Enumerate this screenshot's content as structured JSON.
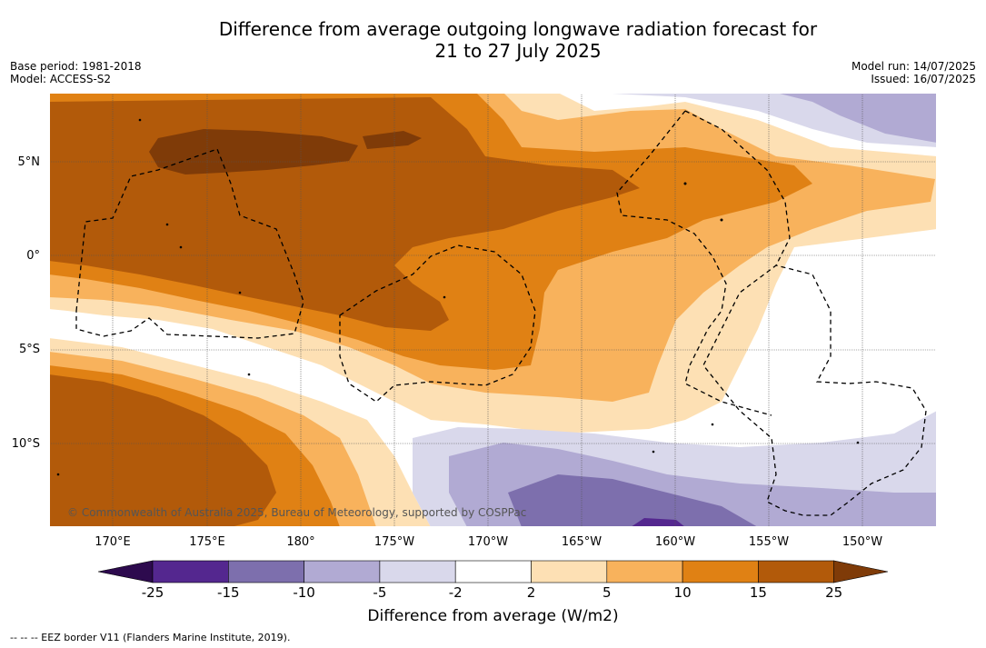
{
  "title": {
    "line1": "Difference from average outgoing longwave radiation forecast for",
    "line2": "21 to 27 July 2025"
  },
  "meta": {
    "base_period": "Base period: 1981-2018",
    "model": "Model: ACCESS-S2",
    "model_run": "Model run: 14/07/2025",
    "issued": "Issued: 16/07/2025"
  },
  "map": {
    "lat_labels": [
      "5°N",
      "0°",
      "5°S",
      "10°S"
    ],
    "lon_labels": [
      "170°E",
      "175°E",
      "180°",
      "175°W",
      "170°W",
      "165°W",
      "160°W",
      "155°W",
      "150°W"
    ],
    "copyright": "© Commonwealth of Australia 2025, Bureau of Meteorology, supported by COSPPac"
  },
  "colorbar": {
    "labels": [
      "-25",
      "-15",
      "-10",
      "-5",
      "-2",
      "2",
      "5",
      "10",
      "15",
      "25"
    ],
    "colors": [
      "#2d0a4e",
      "#54278f",
      "#7d6fad",
      "#b1aad3",
      "#d9d8eb",
      "#ffffff",
      "#fde0b4",
      "#f8b25c",
      "#e08114",
      "#b25a0a",
      "#7f3b08"
    ],
    "title": "Difference from average (W/m2)"
  },
  "footnote": "--  --  -- EEZ border V11 (Flanders Marine Institute, 2019)."
}
